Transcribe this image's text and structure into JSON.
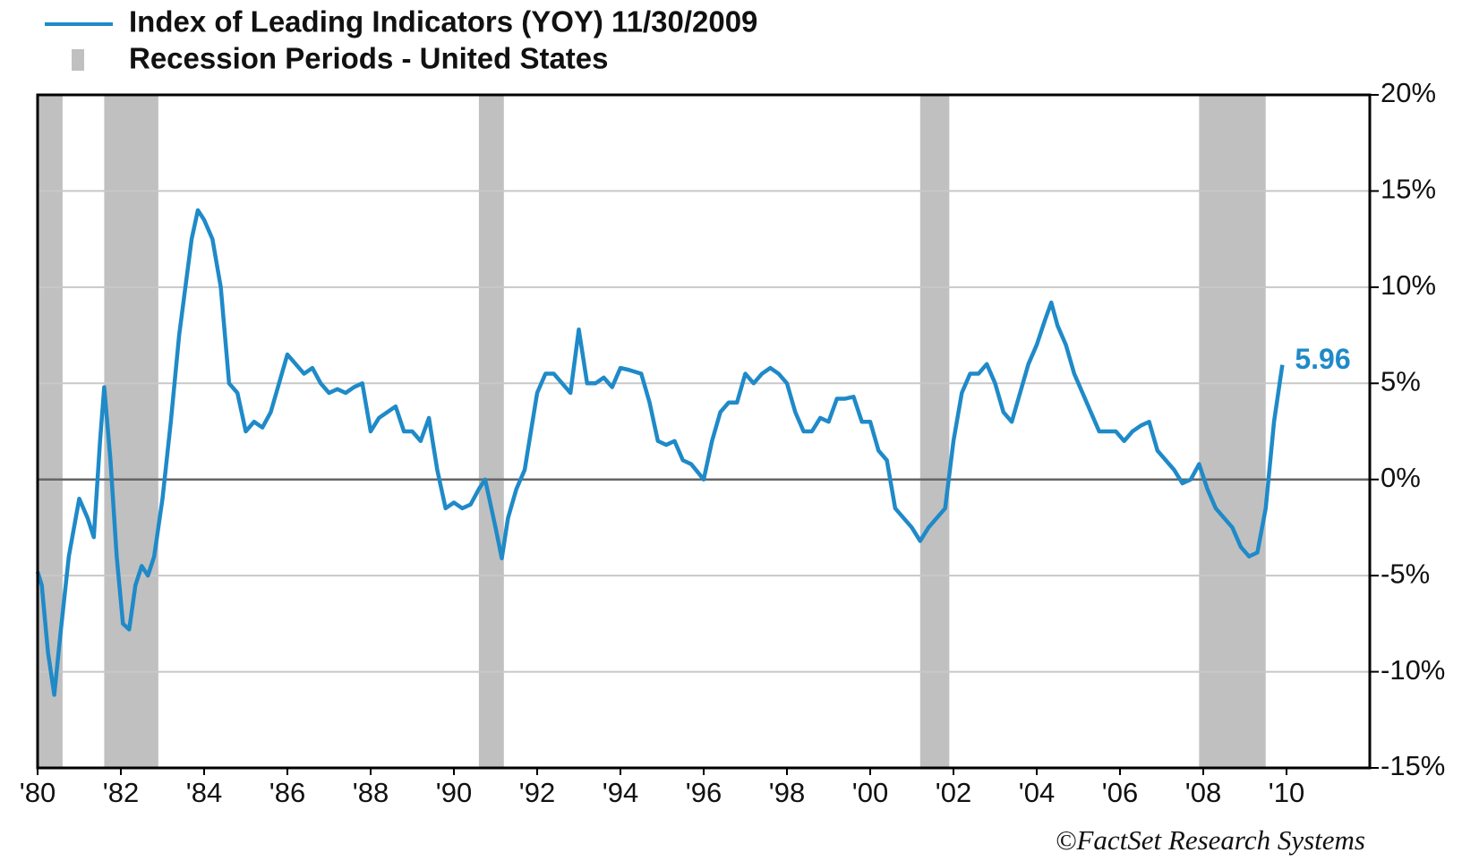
{
  "chart_data": {
    "type": "line",
    "source": "©FactSet Research Systems",
    "x": [
      1980.0,
      1980.1,
      1980.25,
      1980.4,
      1980.55,
      1980.75,
      1981.0,
      1981.2,
      1981.35,
      1981.5,
      1981.6,
      1981.75,
      1981.9,
      1982.05,
      1982.2,
      1982.35,
      1982.5,
      1982.65,
      1982.8,
      1983.0,
      1983.2,
      1983.4,
      1983.55,
      1983.7,
      1983.85,
      1984.0,
      1984.2,
      1984.4,
      1984.6,
      1984.8,
      1985.0,
      1985.2,
      1985.4,
      1985.6,
      1985.8,
      1986.0,
      1986.2,
      1986.4,
      1986.6,
      1986.8,
      1987.0,
      1987.2,
      1987.4,
      1987.6,
      1987.8,
      1988.0,
      1988.2,
      1988.4,
      1988.6,
      1988.8,
      1989.0,
      1989.2,
      1989.4,
      1989.6,
      1989.8,
      1990.0,
      1990.2,
      1990.4,
      1990.6,
      1990.75,
      1991.0,
      1991.15,
      1991.3,
      1991.5,
      1991.7,
      1991.85,
      1992.0,
      1992.2,
      1992.4,
      1992.6,
      1992.8,
      1993.0,
      1993.2,
      1993.4,
      1993.6,
      1993.8,
      1994.0,
      1994.2,
      1994.5,
      1994.7,
      1994.9,
      1995.1,
      1995.3,
      1995.5,
      1995.7,
      1996.0,
      1996.2,
      1996.4,
      1996.6,
      1996.8,
      1997.0,
      1997.2,
      1997.4,
      1997.6,
      1997.8,
      1998.0,
      1998.2,
      1998.4,
      1998.6,
      1998.8,
      1999.0,
      1999.2,
      1999.4,
      1999.6,
      1999.8,
      2000.0,
      2000.2,
      2000.4,
      2000.6,
      2000.8,
      2001.0,
      2001.2,
      2001.4,
      2001.6,
      2001.8,
      2002.0,
      2002.2,
      2002.4,
      2002.6,
      2002.8,
      2003.0,
      2003.2,
      2003.4,
      2003.6,
      2003.8,
      2004.0,
      2004.2,
      2004.35,
      2004.5,
      2004.7,
      2004.9,
      2005.1,
      2005.3,
      2005.5,
      2005.7,
      2005.9,
      2006.1,
      2006.3,
      2006.5,
      2006.7,
      2006.9,
      2007.1,
      2007.3,
      2007.5,
      2007.7,
      2007.9,
      2008.1,
      2008.3,
      2008.5,
      2008.7,
      2008.9,
      2009.1,
      2009.3,
      2009.5,
      2009.7,
      2009.9
    ],
    "series": [
      {
        "name": "Index of Leading Indicators (YOY) 11/30/2009",
        "color": "#1f8ac8",
        "values": [
          -4.8,
          -5.5,
          -9,
          -11.2,
          -8,
          -4,
          -1,
          -2,
          -3,
          2,
          4.8,
          1,
          -4,
          -7.5,
          -7.8,
          -5.5,
          -4.5,
          -5,
          -4,
          -1,
          3,
          7.5,
          10,
          12.5,
          14,
          13.5,
          12.5,
          10,
          5,
          4.5,
          2.5,
          3,
          2.7,
          3.5,
          5,
          6.5,
          6,
          5.5,
          5.8,
          5,
          4.5,
          4.7,
          4.5,
          4.8,
          5,
          2.5,
          3.2,
          3.5,
          3.8,
          2.5,
          2.5,
          2,
          3.2,
          0.5,
          -1.5,
          -1.2,
          -1.5,
          -1.3,
          -0.5,
          0,
          -2.5,
          -4.1,
          -2,
          -0.5,
          0.5,
          2.5,
          4.5,
          5.5,
          5.5,
          5,
          4.5,
          7.8,
          5,
          5,
          5.3,
          4.8,
          5.8,
          5.7,
          5.5,
          4,
          2,
          1.8,
          2,
          1,
          0.8,
          0,
          2,
          3.5,
          4,
          4,
          5.5,
          5,
          5.5,
          5.8,
          5.5,
          5,
          3.5,
          2.5,
          2.5,
          3.2,
          3,
          4.2,
          4.2,
          4.3,
          3,
          3,
          1.5,
          1,
          -1.5,
          -2,
          -2.5,
          -3.2,
          -2.5,
          -2,
          -1.5,
          2,
          4.5,
          5.5,
          5.5,
          6,
          5,
          3.5,
          3,
          4.5,
          6,
          7,
          8.3,
          9.2,
          8,
          7,
          5.5,
          4.5,
          3.5,
          2.5,
          2.5,
          2.5,
          2,
          2.5,
          2.8,
          3,
          1.5,
          1,
          0.5,
          -0.2,
          0,
          0.8,
          -0.5,
          -1.5,
          -2,
          -2.5,
          -3.5,
          -4,
          -3.8,
          -1.5,
          3,
          5.96
        ]
      }
    ],
    "bands": {
      "name": "Recession Periods - United States",
      "color": "#c0c0c0",
      "periods": [
        [
          1980.0,
          1980.6
        ],
        [
          1981.6,
          1982.9
        ],
        [
          1990.6,
          1991.2
        ],
        [
          2001.2,
          2001.9
        ],
        [
          2007.9,
          2009.5
        ]
      ]
    },
    "xlim": [
      1980,
      2012
    ],
    "xticks": [
      {
        "value": 1980,
        "label": "'80"
      },
      {
        "value": 1982,
        "label": "'82"
      },
      {
        "value": 1984,
        "label": "'84"
      },
      {
        "value": 1986,
        "label": "'86"
      },
      {
        "value": 1988,
        "label": "'88"
      },
      {
        "value": 1990,
        "label": "'90"
      },
      {
        "value": 1992,
        "label": "'92"
      },
      {
        "value": 1994,
        "label": "'94"
      },
      {
        "value": 1996,
        "label": "'96"
      },
      {
        "value": 1998,
        "label": "'98"
      },
      {
        "value": 2000,
        "label": "'00"
      },
      {
        "value": 2002,
        "label": "'02"
      },
      {
        "value": 2004,
        "label": "'04"
      },
      {
        "value": 2006,
        "label": "'06"
      },
      {
        "value": 2008,
        "label": "'08"
      },
      {
        "value": 2010,
        "label": "'10"
      }
    ],
    "ylim": [
      -15,
      20
    ],
    "yticks": [
      {
        "value": -15,
        "label": "-15%"
      },
      {
        "value": -10,
        "label": "-10%"
      },
      {
        "value": -5,
        "label": "-5%"
      },
      {
        "value": 0,
        "label": "0%"
      },
      {
        "value": 5,
        "label": "5%"
      },
      {
        "value": 10,
        "label": "10%"
      },
      {
        "value": 15,
        "label": "15%"
      },
      {
        "value": 20,
        "label": "20%"
      }
    ],
    "grid": true
  }
}
